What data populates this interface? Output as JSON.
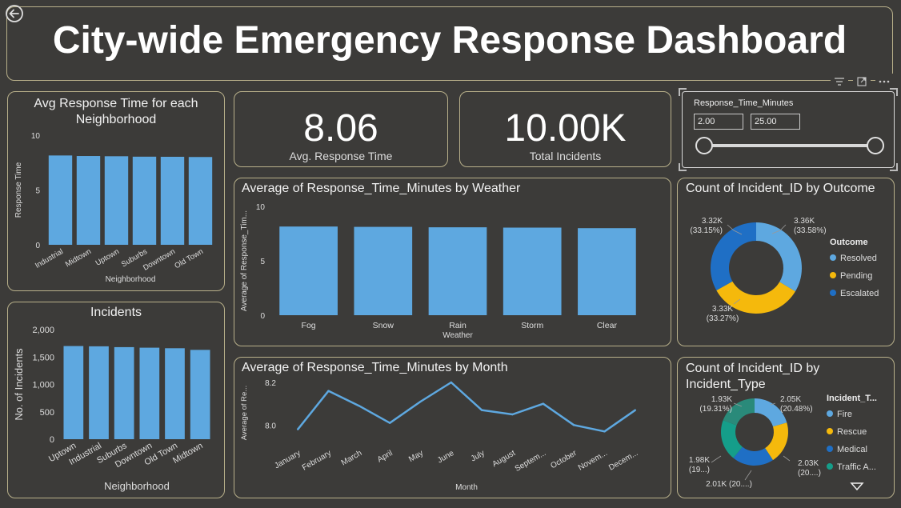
{
  "dashboard": {
    "title": "City-wide Emergency Response Dashboard"
  },
  "colors": {
    "bar": "#5ea8e0",
    "resolved": "#5ea8e0",
    "pending": "#f5b90c",
    "escalated": "#1f6fc5",
    "teal": "#159e8a",
    "line": "#5ea8e0"
  },
  "icons": {
    "back": "back-arrow-icon",
    "filter": "filter-icon",
    "focus": "focus-mode-icon",
    "more": "more-options-icon",
    "scroll": "scroll-down-icon"
  },
  "kpi": [
    {
      "value": "8.06",
      "label": "Avg. Response Time"
    },
    {
      "value": "10.00K",
      "label": "Total Incidents"
    }
  ],
  "slicer": {
    "label": "Response_Time_Minutes",
    "min": "2.00",
    "max": "25.00"
  },
  "chart_data": [
    {
      "id": "neigh",
      "type": "bar",
      "title": "Avg Response Time for each Neighborhood",
      "title_lines": [
        "Avg Response Time for each",
        "Neighborhood"
      ],
      "xlabel": "Neighborhood",
      "ylabel": "Response Time",
      "categories": [
        "Industrial",
        "Midtown",
        "Uptown",
        "Suburbs",
        "Downtown",
        "Old Town"
      ],
      "values": [
        8.15,
        8.1,
        8.08,
        8.04,
        8.03,
        8.01
      ],
      "ylim": [
        0,
        10
      ],
      "yticks": [
        "0",
        "5",
        "10"
      ],
      "grid": false
    },
    {
      "id": "incidents",
      "type": "bar",
      "title": "Incidents",
      "xlabel": "Neighborhood",
      "ylabel": "No. of Incidents",
      "categories": [
        "Uptown",
        "Industrial",
        "Suburbs",
        "Downtown",
        "Old Town",
        "Midtown"
      ],
      "values": [
        1700,
        1695,
        1680,
        1670,
        1660,
        1630
      ],
      "ylim": [
        0,
        2000
      ],
      "yticks": [
        "0",
        "500",
        "1,000",
        "1,500",
        "2,000"
      ],
      "grid": false
    },
    {
      "id": "weather",
      "type": "bar",
      "title": "Average of Response_Time_Minutes by Weather",
      "xlabel": "Weather",
      "ylabel": "Average of Response_Tim...",
      "categories": [
        "Fog",
        "Snow",
        "Rain",
        "Storm",
        "Clear"
      ],
      "values": [
        8.15,
        8.12,
        8.08,
        8.05,
        8.0
      ],
      "ylim": [
        0,
        10
      ],
      "yticks": [
        "0",
        "5",
        "10"
      ],
      "grid": false
    },
    {
      "id": "month",
      "type": "line",
      "title": "Average of Response_Time_Minutes by Month",
      "xlabel": "Month",
      "ylabel": "Average of Re...",
      "categories": [
        "January",
        "February",
        "March",
        "April",
        "May",
        "June",
        "July",
        "August",
        "Septem...",
        "October",
        "Novem...",
        "Decem..."
      ],
      "values": [
        7.98,
        8.16,
        8.09,
        8.01,
        8.11,
        8.2,
        8.07,
        8.05,
        8.1,
        8.0,
        7.97,
        8.07
      ],
      "ylim": [
        7.93,
        8.23
      ],
      "yticks": [
        {
          "label": "8.0",
          "v": 8.0
        },
        {
          "label": "8.2",
          "v": 8.2
        }
      ],
      "grid": false
    },
    {
      "id": "outcome",
      "type": "pie",
      "title": "Count of Incident_ID by Outcome",
      "legend_title": "Outcome",
      "legend_position": "right",
      "slices": [
        {
          "name": "Resolved",
          "value": 3360,
          "label1": "3.36K",
          "label2": "(33.58%)"
        },
        {
          "name": "Pending",
          "value": 3330,
          "label1": "3.33K",
          "label2": "(33.27%)"
        },
        {
          "name": "Escalated",
          "value": 3320,
          "label1": "3.32K",
          "label2": "(33.15%)"
        }
      ]
    },
    {
      "id": "type",
      "type": "pie",
      "title": "Count of Incident_ID by Incident_Type",
      "title_lines": [
        "Count of Incident_ID by",
        "Incident_Type"
      ],
      "legend_title": "Incident_T...",
      "legend_position": "right",
      "slices": [
        {
          "name": "Fire",
          "value": 2048,
          "label1": "2.05K",
          "label2": "(20.48%)"
        },
        {
          "name": "Rescue",
          "value": 2030,
          "label1": "2.03K",
          "label2": "(20....)"
        },
        {
          "name": "Medical",
          "value": 2010,
          "label1": "2.01K (20....)",
          "label2": ""
        },
        {
          "name": "Traffic A...",
          "value": 1980,
          "label1": "1.98K",
          "label2": "(19...)"
        },
        {
          "name": "",
          "value": 1931,
          "label1": "1.93K",
          "label2": "(19.31%)"
        }
      ]
    }
  ]
}
